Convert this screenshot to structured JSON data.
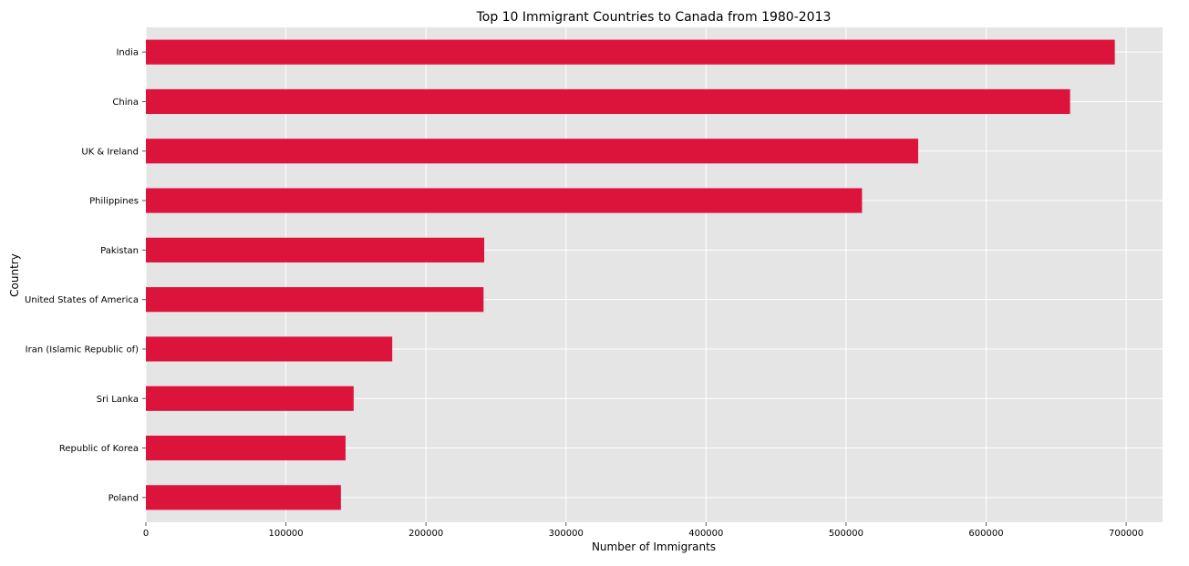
{
  "chart_data": {
    "type": "bar",
    "orientation": "horizontal",
    "title": "Top 10 Immigrant Countries to Canada from 1980-2013",
    "xlabel": "Number of Immigrants",
    "ylabel": "Country",
    "categories": [
      "India",
      "China",
      "UK & Ireland",
      "Philippines",
      "Pakistan",
      "United States of America",
      "Iran (Islamic Republic of)",
      "Sri Lanka",
      "Republic of Korea",
      "Poland"
    ],
    "values": [
      691904,
      659962,
      551500,
      511391,
      241600,
      241122,
      175923,
      148358,
      142581,
      139241
    ],
    "xlim": [
      0,
      726000
    ],
    "xticks": [
      0,
      100000,
      200000,
      300000,
      400000,
      500000,
      600000,
      700000
    ],
    "xtick_labels": [
      "0",
      "100000",
      "200000",
      "300000",
      "400000",
      "500000",
      "600000",
      "700000"
    ],
    "grid": true,
    "colors": {
      "bar": "#dc143c",
      "background": "#e5e5e5",
      "grid": "#ffffff"
    }
  }
}
